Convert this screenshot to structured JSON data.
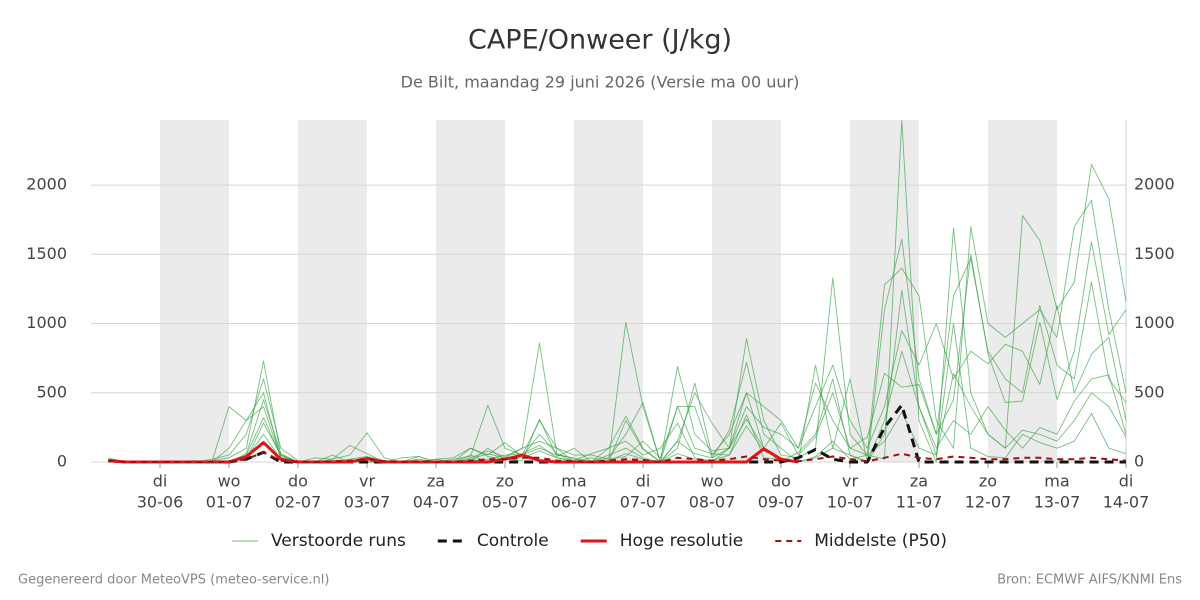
{
  "chart_data": {
    "type": "ensemble-line",
    "title": "CAPE/Onweer (J/kg)",
    "subtitle": "De Bilt, maandag 29 juni 2026 (Versie ma 00 uur)",
    "footer_left": "Gegenereerd door MeteoVPS (meteo-service.nl)",
    "footer_right": "Bron: ECMWF AIFS/KNMI Ens",
    "xlim": [
      0,
      360
    ],
    "xticks": [
      {
        "value": 24,
        "label": "30-06"
      },
      {
        "value": 48,
        "label": "01-07"
      },
      {
        "value": 72,
        "label": "02-07"
      },
      {
        "value": 96,
        "label": "03-07"
      },
      {
        "value": 120,
        "label": "04-07"
      },
      {
        "value": 144,
        "label": "05-07"
      },
      {
        "value": 168,
        "label": "06-07"
      },
      {
        "value": 192,
        "label": "07-07"
      },
      {
        "value": 216,
        "label": "08-07"
      },
      {
        "value": 240,
        "label": "09-07"
      },
      {
        "value": 264,
        "label": "10-07"
      },
      {
        "value": 288,
        "label": "11-07"
      },
      {
        "value": 312,
        "label": "12-07"
      },
      {
        "value": 336,
        "label": "13-07"
      },
      {
        "value": 360,
        "label": "14-07"
      }
    ],
    "xtick_weekdays": [
      "di",
      "wo",
      "do",
      "vr",
      "za",
      "zo",
      "ma",
      "di",
      "wo",
      "do",
      "vr",
      "za",
      "zo",
      "ma",
      "di"
    ],
    "alternate_day_shading": true,
    "ylim": [
      0,
      2470
    ],
    "yticks": [
      0,
      500,
      1000,
      1500,
      2000
    ],
    "y_right_labels": true,
    "grid": true,
    "legend": "bottom",
    "x": [
      6,
      12,
      18,
      24,
      30,
      36,
      42,
      48,
      54,
      60,
      66,
      72,
      78,
      84,
      90,
      96,
      102,
      108,
      114,
      120,
      126,
      132,
      138,
      144,
      150,
      156,
      162,
      168,
      174,
      180,
      186,
      192,
      198,
      204,
      210,
      216,
      222,
      228,
      234,
      240,
      246,
      252,
      258,
      264,
      270,
      276,
      282,
      288,
      294,
      300,
      306,
      312,
      318,
      324,
      330,
      336,
      342,
      348,
      354,
      360
    ],
    "series": [
      {
        "name": "Verstoorde runs",
        "color": "#2e9e3b",
        "style": "thin",
        "members": [
          [
            20,
            0,
            0,
            0,
            0,
            0,
            10,
            30,
            100,
            730,
            50,
            0,
            0,
            0,
            20,
            40,
            10,
            0,
            0,
            0,
            0,
            30,
            80,
            40,
            100,
            860,
            60,
            20,
            0,
            50,
            100,
            30,
            0,
            690,
            200,
            80,
            100,
            890,
            300,
            50,
            30,
            100,
            1330,
            200,
            50,
            20,
            2470,
            300,
            0,
            1690,
            500,
            200,
            100,
            1780,
            1600,
            1100,
            1300,
            2150,
            1900,
            1160
          ],
          [
            10,
            0,
            0,
            0,
            0,
            10,
            0,
            400,
            300,
            500,
            20,
            0,
            0,
            50,
            0,
            0,
            10,
            0,
            0,
            0,
            20,
            40,
            410,
            100,
            50,
            300,
            100,
            0,
            30,
            0,
            1010,
            400,
            0,
            100,
            570,
            50,
            200,
            500,
            400,
            300,
            100,
            570,
            300,
            100,
            50,
            1280,
            1400,
            1200,
            300,
            100,
            1700,
            1000,
            900,
            1000,
            1100,
            900,
            1700,
            1890,
            1100,
            500
          ],
          [
            30,
            0,
            0,
            0,
            0,
            0,
            20,
            50,
            200,
            600,
            100,
            10,
            0,
            0,
            0,
            0,
            0,
            0,
            0,
            20,
            0,
            100,
            40,
            20,
            10,
            310,
            40,
            100,
            0,
            30,
            200,
            430,
            0,
            150,
            60,
            30,
            230,
            720,
            200,
            100,
            0,
            700,
            100,
            600,
            0,
            1100,
            1610,
            600,
            200,
            1200,
            1470,
            800,
            600,
            500,
            1130,
            700,
            600,
            1300,
            600,
            430
          ],
          [
            0,
            0,
            0,
            0,
            0,
            0,
            0,
            0,
            50,
            320,
            40,
            0,
            30,
            20,
            120,
            60,
            0,
            30,
            40,
            0,
            0,
            0,
            100,
            20,
            50,
            100,
            50,
            30,
            0,
            100,
            330,
            100,
            0,
            400,
            400,
            30,
            100,
            310,
            100,
            280,
            50,
            180,
            500,
            100,
            180,
            640,
            540,
            560,
            200,
            450,
            1500,
            780,
            430,
            440,
            1010,
            450,
            800,
            1590,
            920,
            1100
          ],
          [
            10,
            0,
            0,
            0,
            0,
            0,
            0,
            100,
            300,
            400,
            30,
            0,
            0,
            20,
            50,
            210,
            30,
            0,
            0,
            20,
            30,
            100,
            50,
            140,
            40,
            200,
            60,
            0,
            0,
            0,
            300,
            90,
            0,
            150,
            500,
            280,
            100,
            400,
            250,
            200,
            100,
            400,
            700,
            300,
            100,
            400,
            950,
            700,
            1000,
            600,
            800,
            710,
            850,
            800,
            560,
            1130,
            500,
            780,
            900,
            300
          ],
          [
            0,
            0,
            0,
            0,
            0,
            0,
            0,
            0,
            30,
            200,
            20,
            0,
            0,
            0,
            0,
            0,
            10,
            0,
            0,
            0,
            0,
            10,
            20,
            50,
            60,
            120,
            30,
            0,
            0,
            10,
            60,
            20,
            0,
            60,
            20,
            10,
            50,
            260,
            80,
            30,
            0,
            30,
            100,
            50,
            0,
            200,
            1240,
            400,
            100,
            300,
            200,
            400,
            230,
            100,
            250,
            200,
            440,
            600,
            630,
            200
          ],
          [
            0,
            0,
            0,
            0,
            0,
            0,
            0,
            0,
            60,
            450,
            60,
            0,
            0,
            0,
            0,
            30,
            0,
            0,
            40,
            0,
            0,
            50,
            0,
            20,
            30,
            80,
            30,
            10,
            60,
            100,
            150,
            50,
            100,
            280,
            30,
            0,
            100,
            500,
            100,
            0,
            70,
            200,
            600,
            50,
            0,
            300,
            800,
            400,
            50,
            640,
            400,
            200,
            100,
            230,
            200,
            150,
            300,
            500,
            400,
            180
          ],
          [
            0,
            0,
            0,
            0,
            0,
            0,
            0,
            0,
            20,
            280,
            50,
            0,
            0,
            10,
            10,
            0,
            0,
            0,
            20,
            0,
            0,
            20,
            60,
            30,
            100,
            150,
            100,
            50,
            50,
            20,
            40,
            150,
            30,
            400,
            100,
            60,
            50,
            340,
            30,
            20,
            0,
            40,
            150,
            20,
            50,
            150,
            360,
            100,
            50,
            1000,
            100,
            40,
            30,
            200,
            140,
            100,
            150,
            350,
            100,
            60
          ]
        ]
      },
      {
        "name": "Controle",
        "color": "#111111",
        "style": "dashed",
        "values": [
          10,
          0,
          0,
          0,
          0,
          0,
          0,
          0,
          20,
          70,
          0,
          0,
          0,
          0,
          0,
          0,
          0,
          0,
          0,
          0,
          0,
          0,
          0,
          0,
          0,
          0,
          0,
          0,
          0,
          0,
          0,
          0,
          0,
          0,
          0,
          0,
          0,
          0,
          0,
          0,
          30,
          90,
          20,
          0,
          0,
          250,
          410,
          0,
          0,
          0,
          0,
          0,
          0,
          0,
          0,
          0,
          0,
          0,
          0,
          0
        ]
      },
      {
        "name": "Hoge resolutie",
        "color": "#e0161b",
        "style": "solid",
        "values": [
          10,
          0,
          0,
          0,
          0,
          0,
          0,
          0,
          40,
          140,
          20,
          0,
          0,
          0,
          0,
          25,
          0,
          0,
          0,
          0,
          0,
          0,
          0,
          20,
          50,
          10,
          0,
          0,
          0,
          0,
          0,
          0,
          0,
          0,
          0,
          0,
          0,
          0,
          95,
          20,
          0,
          null,
          null,
          null,
          null,
          null,
          null,
          null,
          null,
          null,
          null,
          null,
          null,
          null,
          null,
          null,
          null,
          null,
          null,
          null
        ]
      },
      {
        "name": "Middelste (P50)",
        "color": "#a01010",
        "style": "short-dashed",
        "values": [
          10,
          0,
          0,
          0,
          0,
          0,
          0,
          5,
          20,
          70,
          10,
          0,
          0,
          5,
          10,
          20,
          5,
          0,
          5,
          0,
          0,
          10,
          20,
          20,
          30,
          30,
          10,
          5,
          0,
          10,
          20,
          15,
          0,
          30,
          20,
          10,
          20,
          40,
          20,
          10,
          5,
          20,
          40,
          20,
          5,
          30,
          60,
          30,
          20,
          40,
          30,
          20,
          20,
          30,
          30,
          20,
          20,
          30,
          20,
          10
        ]
      }
    ]
  }
}
